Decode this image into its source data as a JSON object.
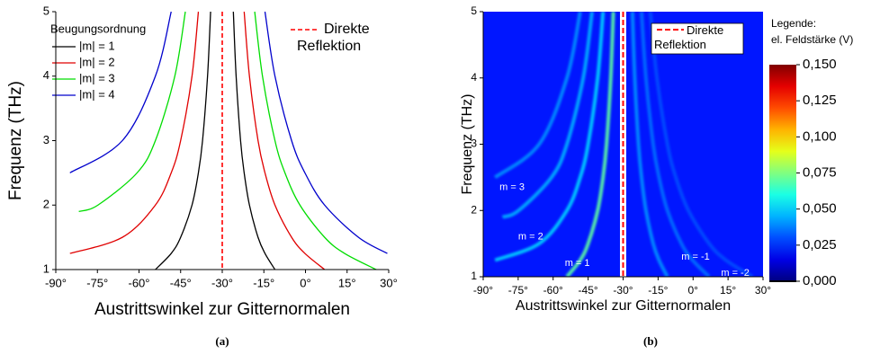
{
  "chart_data": [
    {
      "type": "line",
      "caption": "(a)",
      "xlabel": "Austrittswinkel zur Gitternormalen",
      "ylabel": "Frequenz (THz)",
      "xlim": [
        -90,
        30
      ],
      "ylim": [
        1,
        5
      ],
      "xticks": [
        {
          "value": -90,
          "label": "-90°"
        },
        {
          "value": -75,
          "label": "-75°"
        },
        {
          "value": -60,
          "label": "-60°"
        },
        {
          "value": -45,
          "label": "-45°"
        },
        {
          "value": -30,
          "label": "-30°"
        },
        {
          "value": -15,
          "label": "-15°"
        },
        {
          "value": 0,
          "label": "0°"
        },
        {
          "value": 15,
          "label": "15°"
        },
        {
          "value": 30,
          "label": "30°"
        }
      ],
      "yticks": [
        1,
        2,
        3,
        4,
        5
      ],
      "legend_title": "Beugungsordnung",
      "series": [
        {
          "name": "|m| = 1",
          "color": "#000000",
          "x": [
            -34.2,
            -35.3,
            -37.1,
            -38.6,
            -40.9,
            -45.0,
            -48.4,
            -54.1,
            null,
            -26.0,
            -25.0,
            -23.4,
            -22.1,
            -20.2,
            -17.1,
            -14.6,
            -11.0
          ],
          "values": [
            5,
            4,
            3,
            2.5,
            2,
            1.5,
            1.25,
            1,
            null,
            5,
            4,
            3,
            2.5,
            2,
            1.5,
            1.25,
            1
          ]
        },
        {
          "name": "|m| = 2",
          "color": "#e00000",
          "x": [
            -38.6,
            -40.9,
            -45.0,
            -48.4,
            -54.1,
            -66.0,
            -84.9,
            null,
            -22.1,
            -20.2,
            -17.1,
            -14.6,
            -11.0,
            -5.0,
            -0.2,
            6.9
          ],
          "values": [
            5,
            4,
            3,
            2.5,
            2,
            1.5,
            1.25,
            null,
            5,
            4,
            3,
            2.5,
            2,
            1.5,
            1.25,
            1
          ]
        },
        {
          "name": "|m| = 3",
          "color": "#00dd00",
          "x": [
            -43.3,
            -47.1,
            -54.1,
            -60.7,
            -74.8,
            -81.7,
            null,
            -18.3,
            -15.5,
            -11.0,
            -7.4,
            -2.0,
            6.9,
            14.1,
            25.5
          ],
          "values": [
            5,
            4,
            3,
            2.5,
            2,
            1.9,
            null,
            5,
            4,
            3,
            2.5,
            2,
            1.5,
            1.25,
            1
          ]
        },
        {
          "name": "|m| = 4",
          "color": "#0000cc",
          "x": [
            -48.4,
            -54.1,
            -66.0,
            -84.9,
            null,
            -14.6,
            -11.0,
            -5.0,
            -0.2,
            6.9,
            19.1,
            29.5
          ],
          "values": [
            5,
            4,
            3,
            2.5,
            null,
            5,
            4,
            3,
            2.5,
            2,
            1.5,
            1.25
          ]
        }
      ],
      "reference_line": {
        "name": "Direkte Reflektion",
        "x": -30,
        "color": "#ff0000",
        "style": "dashed"
      }
    },
    {
      "type": "heatmap",
      "caption": "(b)",
      "xlabel": "Austrittswinkel zur Gitternormalen",
      "ylabel": "Frequenz (THz)",
      "xlim": [
        -90,
        30
      ],
      "ylim": [
        1,
        5
      ],
      "xticks": [
        {
          "value": -90,
          "label": "-90°"
        },
        {
          "value": -75,
          "label": "-75°"
        },
        {
          "value": -60,
          "label": "-60°"
        },
        {
          "value": -45,
          "label": "-45°"
        },
        {
          "value": -30,
          "label": "-30°"
        },
        {
          "value": -15,
          "label": "-15°"
        },
        {
          "value": 0,
          "label": "0°"
        },
        {
          "value": 15,
          "label": "15°"
        },
        {
          "value": 30,
          "label": "30°"
        }
      ],
      "yticks": [
        1,
        2,
        3,
        4,
        5
      ],
      "colormap": "jet",
      "background_value": 0.004,
      "colorbar_title": [
        "Legende:",
        "el. Feldstärke (V)"
      ],
      "colorbar_lim": [
        0,
        0.15
      ],
      "colorbar_ticks": [
        {
          "value": 0,
          "label": "0,000"
        },
        {
          "value": 0.025,
          "label": "0,025"
        },
        {
          "value": 0.05,
          "label": "0,050"
        },
        {
          "value": 0.075,
          "label": "0,075"
        },
        {
          "value": 0.1,
          "label": "0,100"
        },
        {
          "value": 0.125,
          "label": "0,125"
        },
        {
          "value": 0.15,
          "label": "0,150"
        }
      ],
      "ridges": [
        {
          "x": [
            -34.2,
            -35.3,
            -37.1,
            -38.6,
            -40.9,
            -45.0,
            -48.4,
            -54.1
          ],
          "y": [
            5,
            4,
            3,
            2.5,
            2,
            1.5,
            1.25,
            1
          ],
          "value": 0.07
        },
        {
          "x": [
            -38.6,
            -40.9,
            -45.0,
            -48.4,
            -54.1,
            -66.0,
            -84.9
          ],
          "y": [
            5,
            4,
            3,
            2.5,
            2,
            1.5,
            1.25
          ],
          "value": 0.05
        },
        {
          "x": [
            -43.3,
            -47.1,
            -54.1,
            -60.7,
            -74.8,
            -81.7
          ],
          "y": [
            5,
            4,
            3,
            2.5,
            2,
            1.9
          ],
          "value": 0.045
        },
        {
          "x": [
            -48.4,
            -54.1,
            -66.0,
            -84.9
          ],
          "y": [
            5,
            4,
            3,
            2.5
          ],
          "value": 0.04
        },
        {
          "x": [
            -26.0,
            -25.0,
            -23.4,
            -22.1,
            -20.2,
            -17.1,
            -14.6,
            -11.0
          ],
          "y": [
            5,
            4,
            3,
            2.5,
            2,
            1.5,
            1.25,
            1
          ],
          "value": 0.04
        },
        {
          "x": [
            -22.1,
            -20.2,
            -17.1,
            -14.6,
            -11.0,
            -5.0,
            -0.2,
            6.9
          ],
          "y": [
            5,
            4,
            3,
            2.5,
            2,
            1.5,
            1.25,
            1
          ],
          "value": 0.035
        },
        {
          "x": [
            -18.3,
            -15.5,
            -11.0,
            -7.4,
            -2.0,
            6.9,
            14.1,
            25.5
          ],
          "y": [
            5,
            4,
            3,
            2.5,
            2,
            1.5,
            1.25,
            1
          ],
          "value": 0.03
        },
        {
          "x": [
            -33,
            -33
          ],
          "y": [
            1,
            5
          ],
          "value": 0.15
        },
        {
          "x": [
            -28,
            -28
          ],
          "y": [
            1,
            5
          ],
          "value": 0.15
        }
      ],
      "annotations": [
        {
          "text": "m = 3",
          "x": -83,
          "y": 2.35
        },
        {
          "text": "m = 2",
          "x": -75,
          "y": 1.6
        },
        {
          "text": "m = 1",
          "x": -55,
          "y": 1.2
        },
        {
          "text": "m = -1",
          "x": -5,
          "y": 1.3
        },
        {
          "text": "m = -2",
          "x": 12,
          "y": 1.05
        }
      ],
      "reference_line": {
        "name": "Direkte Reflektion",
        "x": -30,
        "color": "#ff0000",
        "style": "dashed"
      }
    }
  ]
}
